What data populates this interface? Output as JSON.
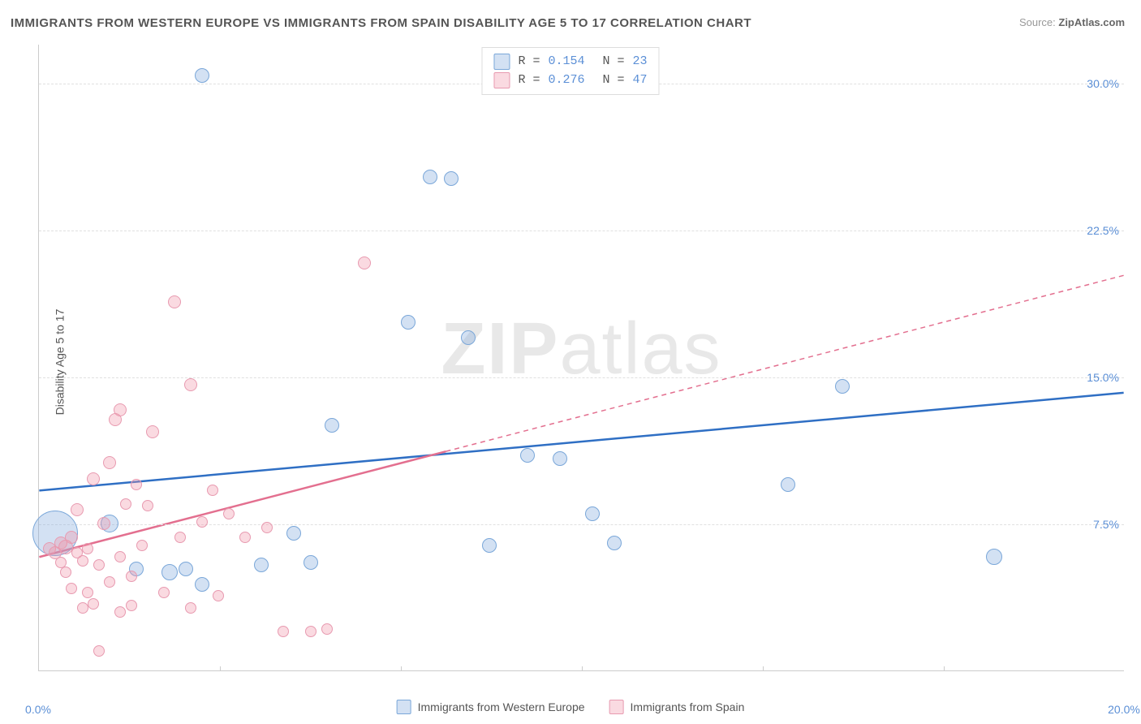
{
  "title": "IMMIGRANTS FROM WESTERN EUROPE VS IMMIGRANTS FROM SPAIN DISABILITY AGE 5 TO 17 CORRELATION CHART",
  "source_label": "Source:",
  "source_value": "ZipAtlas.com",
  "ylabel": "Disability Age 5 to 17",
  "watermark_bold": "ZIP",
  "watermark_rest": "atlas",
  "chart": {
    "type": "scatter",
    "xlim": [
      0,
      20
    ],
    "ylim": [
      0,
      32
    ],
    "xticks": [
      0,
      20
    ],
    "xtick_labels": [
      "0.0%",
      "20.0%"
    ],
    "xtick_marks": [
      3.33,
      6.67,
      10,
      13.33,
      16.67
    ],
    "yticks": [
      7.5,
      15.0,
      22.5,
      30.0
    ],
    "ytick_labels": [
      "7.5%",
      "15.0%",
      "22.5%",
      "30.0%"
    ],
    "grid_color": "#e0e0e0",
    "background_color": "#ffffff",
    "series": [
      {
        "name": "Immigrants from Western Europe",
        "fill": "rgba(130,170,220,0.35)",
        "stroke": "#7aa7d9",
        "line_color": "#2f6fc4",
        "r_value": "0.154",
        "n_value": "23",
        "trend": {
          "x1": 0,
          "y1": 9.2,
          "x2": 20,
          "y2": 14.2,
          "solid_until_x": 20
        },
        "points": [
          {
            "x": 0.3,
            "y": 7.0,
            "r": 28
          },
          {
            "x": 1.3,
            "y": 7.5,
            "r": 11
          },
          {
            "x": 1.8,
            "y": 5.2,
            "r": 9
          },
          {
            "x": 2.4,
            "y": 5.0,
            "r": 10
          },
          {
            "x": 2.7,
            "y": 5.2,
            "r": 9
          },
          {
            "x": 3.0,
            "y": 30.4,
            "r": 9
          },
          {
            "x": 3.0,
            "y": 4.4,
            "r": 9
          },
          {
            "x": 4.1,
            "y": 5.4,
            "r": 9
          },
          {
            "x": 4.7,
            "y": 7.0,
            "r": 9
          },
          {
            "x": 5.4,
            "y": 12.5,
            "r": 9
          },
          {
            "x": 5.0,
            "y": 5.5,
            "r": 9
          },
          {
            "x": 6.8,
            "y": 17.8,
            "r": 9
          },
          {
            "x": 7.2,
            "y": 25.2,
            "r": 9
          },
          {
            "x": 7.6,
            "y": 25.1,
            "r": 9
          },
          {
            "x": 7.9,
            "y": 17.0,
            "r": 9
          },
          {
            "x": 8.3,
            "y": 6.4,
            "r": 9
          },
          {
            "x": 9.0,
            "y": 11.0,
            "r": 9
          },
          {
            "x": 9.6,
            "y": 10.8,
            "r": 9
          },
          {
            "x": 10.2,
            "y": 8.0,
            "r": 9
          },
          {
            "x": 10.6,
            "y": 6.5,
            "r": 9
          },
          {
            "x": 13.8,
            "y": 9.5,
            "r": 9
          },
          {
            "x": 14.8,
            "y": 14.5,
            "r": 9
          },
          {
            "x": 17.6,
            "y": 5.8,
            "r": 10
          }
        ]
      },
      {
        "name": "Immigrants from Spain",
        "fill": "rgba(240,150,170,0.35)",
        "stroke": "#e89ab0",
        "line_color": "#e36f8f",
        "r_value": "0.276",
        "n_value": "47",
        "trend": {
          "x1": 0,
          "y1": 5.8,
          "x2": 20,
          "y2": 20.2,
          "solid_until_x": 7.5
        },
        "points": [
          {
            "x": 0.2,
            "y": 6.2,
            "r": 8
          },
          {
            "x": 0.3,
            "y": 6.0,
            "r": 8
          },
          {
            "x": 0.4,
            "y": 6.5,
            "r": 8
          },
          {
            "x": 0.4,
            "y": 5.5,
            "r": 7
          },
          {
            "x": 0.5,
            "y": 6.3,
            "r": 9
          },
          {
            "x": 0.5,
            "y": 5.0,
            "r": 7
          },
          {
            "x": 0.6,
            "y": 4.2,
            "r": 7
          },
          {
            "x": 0.6,
            "y": 6.8,
            "r": 8
          },
          {
            "x": 0.7,
            "y": 8.2,
            "r": 8
          },
          {
            "x": 0.7,
            "y": 6.0,
            "r": 7
          },
          {
            "x": 0.8,
            "y": 5.6,
            "r": 7
          },
          {
            "x": 0.8,
            "y": 3.2,
            "r": 7
          },
          {
            "x": 0.9,
            "y": 4.0,
            "r": 7
          },
          {
            "x": 0.9,
            "y": 6.2,
            "r": 7
          },
          {
            "x": 1.0,
            "y": 9.8,
            "r": 8
          },
          {
            "x": 1.0,
            "y": 3.4,
            "r": 7
          },
          {
            "x": 1.1,
            "y": 5.4,
            "r": 7
          },
          {
            "x": 1.1,
            "y": 1.0,
            "r": 7
          },
          {
            "x": 1.2,
            "y": 7.5,
            "r": 8
          },
          {
            "x": 1.3,
            "y": 10.6,
            "r": 8
          },
          {
            "x": 1.3,
            "y": 4.5,
            "r": 7
          },
          {
            "x": 1.4,
            "y": 12.8,
            "r": 8
          },
          {
            "x": 1.5,
            "y": 13.3,
            "r": 8
          },
          {
            "x": 1.5,
            "y": 5.8,
            "r": 7
          },
          {
            "x": 1.5,
            "y": 3.0,
            "r": 7
          },
          {
            "x": 1.6,
            "y": 8.5,
            "r": 7
          },
          {
            "x": 1.7,
            "y": 4.8,
            "r": 7
          },
          {
            "x": 1.7,
            "y": 3.3,
            "r": 7
          },
          {
            "x": 1.8,
            "y": 9.5,
            "r": 7
          },
          {
            "x": 1.9,
            "y": 6.4,
            "r": 7
          },
          {
            "x": 2.0,
            "y": 8.4,
            "r": 7
          },
          {
            "x": 2.1,
            "y": 12.2,
            "r": 8
          },
          {
            "x": 2.3,
            "y": 4.0,
            "r": 7
          },
          {
            "x": 2.5,
            "y": 18.8,
            "r": 8
          },
          {
            "x": 2.6,
            "y": 6.8,
            "r": 7
          },
          {
            "x": 2.8,
            "y": 14.6,
            "r": 8
          },
          {
            "x": 2.8,
            "y": 3.2,
            "r": 7
          },
          {
            "x": 3.0,
            "y": 7.6,
            "r": 7
          },
          {
            "x": 3.2,
            "y": 9.2,
            "r": 7
          },
          {
            "x": 3.3,
            "y": 3.8,
            "r": 7
          },
          {
            "x": 3.5,
            "y": 8.0,
            "r": 7
          },
          {
            "x": 3.8,
            "y": 6.8,
            "r": 7
          },
          {
            "x": 4.2,
            "y": 7.3,
            "r": 7
          },
          {
            "x": 4.5,
            "y": 2.0,
            "r": 7
          },
          {
            "x": 5.0,
            "y": 2.0,
            "r": 7
          },
          {
            "x": 5.3,
            "y": 2.1,
            "r": 7
          },
          {
            "x": 6.0,
            "y": 20.8,
            "r": 8
          }
        ]
      }
    ]
  }
}
